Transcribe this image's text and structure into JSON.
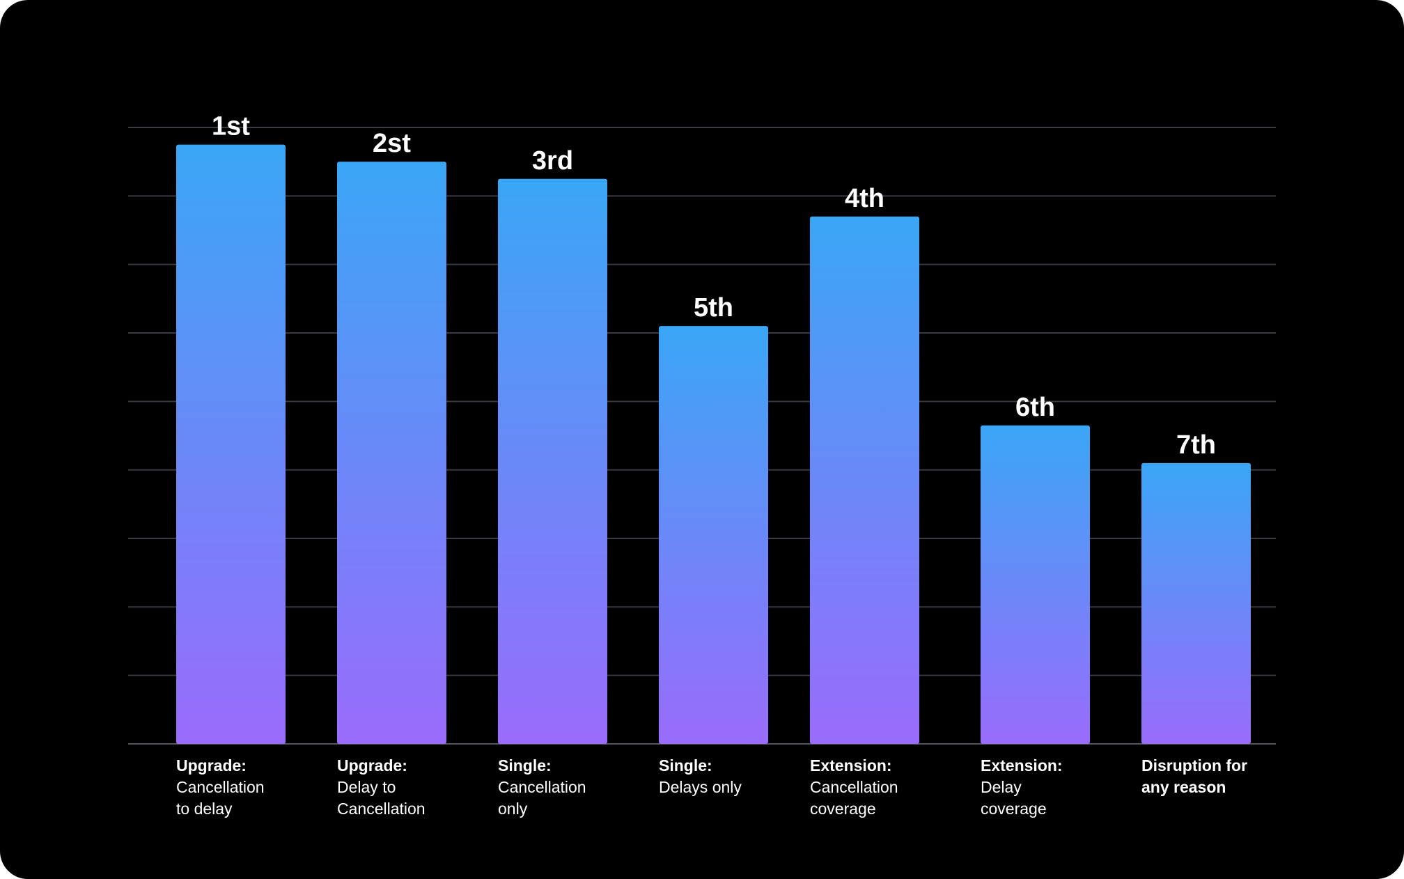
{
  "chart_data": {
    "type": "bar",
    "title": "",
    "xlabel": "",
    "ylabel": "",
    "grid": true,
    "ylim": [
      0,
      9
    ],
    "categories": [
      {
        "bold": "Upgrade:",
        "lines": [
          "Cancellation",
          "to delay"
        ]
      },
      {
        "bold": "Upgrade:",
        "lines": [
          "Delay to",
          "Cancellation"
        ]
      },
      {
        "bold": "Single:",
        "lines": [
          "Cancellation",
          "only"
        ]
      },
      {
        "bold": "Single:",
        "lines": [
          "Delays only"
        ]
      },
      {
        "bold": "Extension:",
        "lines": [
          "Cancellation",
          "coverage"
        ]
      },
      {
        "bold": "Extension:",
        "lines": [
          "Delay",
          "coverage"
        ]
      },
      {
        "bold": "Disruption for",
        "bold2": "any reason",
        "lines": []
      }
    ],
    "values": [
      8.75,
      8.5,
      8.25,
      6.1,
      7.7,
      4.65,
      4.1
    ],
    "data_labels": [
      "1st",
      "2st",
      "3rd",
      "5th",
      "4th",
      "6th",
      "7th"
    ],
    "colors": {
      "bar_top": "#3aa6f5",
      "bar_bottom": "#9a6cfb",
      "grid": "#3a3a42",
      "text": "#ffffff",
      "background": "#000000"
    }
  }
}
